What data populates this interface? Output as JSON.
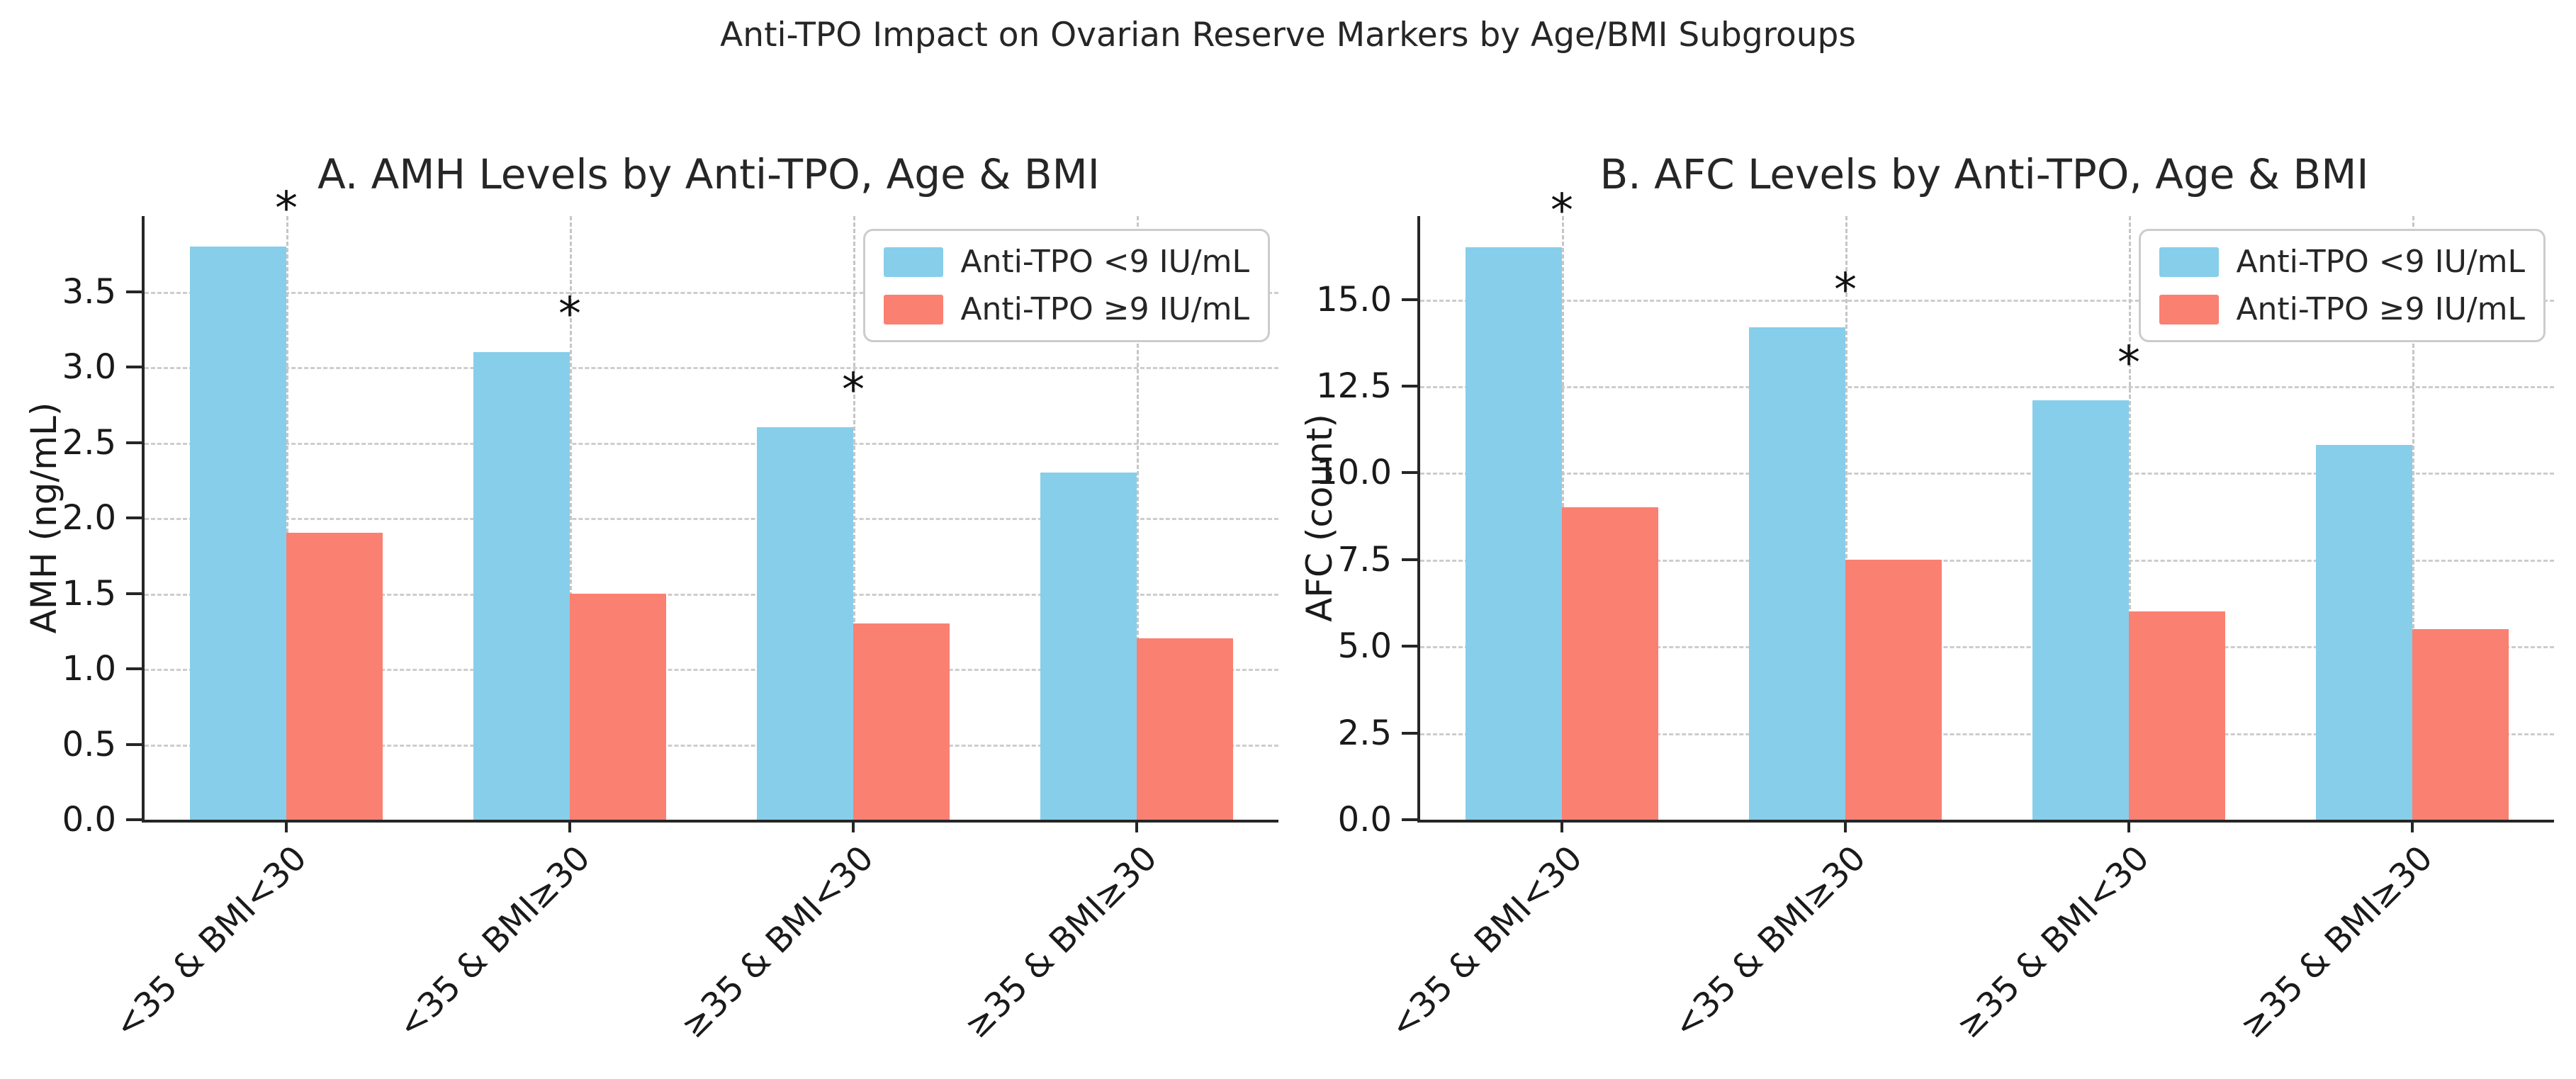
{
  "figure": {
    "main_title": "Anti-TPO Impact on Ovarian Reserve Markers by Age/BMI Subgroups"
  },
  "legend": {
    "items": [
      {
        "label": "Anti-TPO <9 IU/mL",
        "color": "#87CEEB"
      },
      {
        "label": "Anti-TPO ≥9 IU/mL",
        "color": "#FA8072"
      }
    ],
    "position": "upper right"
  },
  "colors": {
    "blue": "#87CEEB",
    "red": "#FA8072",
    "grid": "#cdcdcd",
    "spine": "#262626",
    "text": "#262626",
    "asterisk": "#111111"
  },
  "chart_data": [
    {
      "type": "bar",
      "panel_label": "A",
      "title": "A. AMH Levels by Anti-TPO, Age & BMI",
      "ylabel": "AMH (ng/mL)",
      "xlabel": "",
      "categories": [
        "<35 & BMI<30",
        "<35 & BMI≥30",
        "≥35 & BMI<30",
        "≥35 & BMI≥30"
      ],
      "series": [
        {
          "name": "Anti-TPO <9 IU/mL",
          "color": "#87CEEB",
          "values": [
            3.8,
            3.1,
            2.6,
            2.3
          ]
        },
        {
          "name": "Anti-TPO ≥9 IU/mL",
          "color": "#FA8072",
          "values": [
            1.9,
            1.5,
            1.3,
            1.2
          ]
        }
      ],
      "ylim": [
        0,
        4.0
      ],
      "yticks": [
        "0.0",
        "0.5",
        "1.0",
        "1.5",
        "2.0",
        "2.5",
        "3.0",
        "3.5"
      ],
      "grid": true,
      "legend_position": "upper right",
      "significant_categories": [
        true,
        true,
        true,
        false
      ],
      "significance_asterisks": [
        {
          "category_index": 0,
          "y": 4.15
        },
        {
          "category_index": 1,
          "y": 3.45
        },
        {
          "category_index": 2,
          "y": 2.95
        }
      ]
    },
    {
      "type": "bar",
      "panel_label": "B",
      "title": "B. AFC Levels by Anti-TPO, Age & BMI",
      "ylabel": "AFC (count)",
      "xlabel": "",
      "categories": [
        "<35 & BMI<30",
        "<35 & BMI≥30",
        "≥35 & BMI<30",
        "≥35 & BMI≥30"
      ],
      "series": [
        {
          "name": "Anti-TPO <9 IU/mL",
          "color": "#87CEEB",
          "values": [
            16.5,
            14.2,
            12.1,
            10.8
          ]
        },
        {
          "name": "Anti-TPO ≥9 IU/mL",
          "color": "#FA8072",
          "values": [
            9.0,
            7.5,
            6.0,
            5.5
          ]
        }
      ],
      "ylim": [
        0,
        17.4
      ],
      "yticks": [
        "0.0",
        "2.5",
        "5.0",
        "7.5",
        "10.0",
        "12.5",
        "15.0"
      ],
      "grid": true,
      "legend_position": "upper right",
      "significant_categories": [
        true,
        true,
        true,
        false
      ],
      "significance_asterisks": [
        {
          "category_index": 0,
          "y": 18.0
        },
        {
          "category_index": 1,
          "y": 15.7
        },
        {
          "category_index": 2,
          "y": 13.6
        }
      ]
    }
  ]
}
